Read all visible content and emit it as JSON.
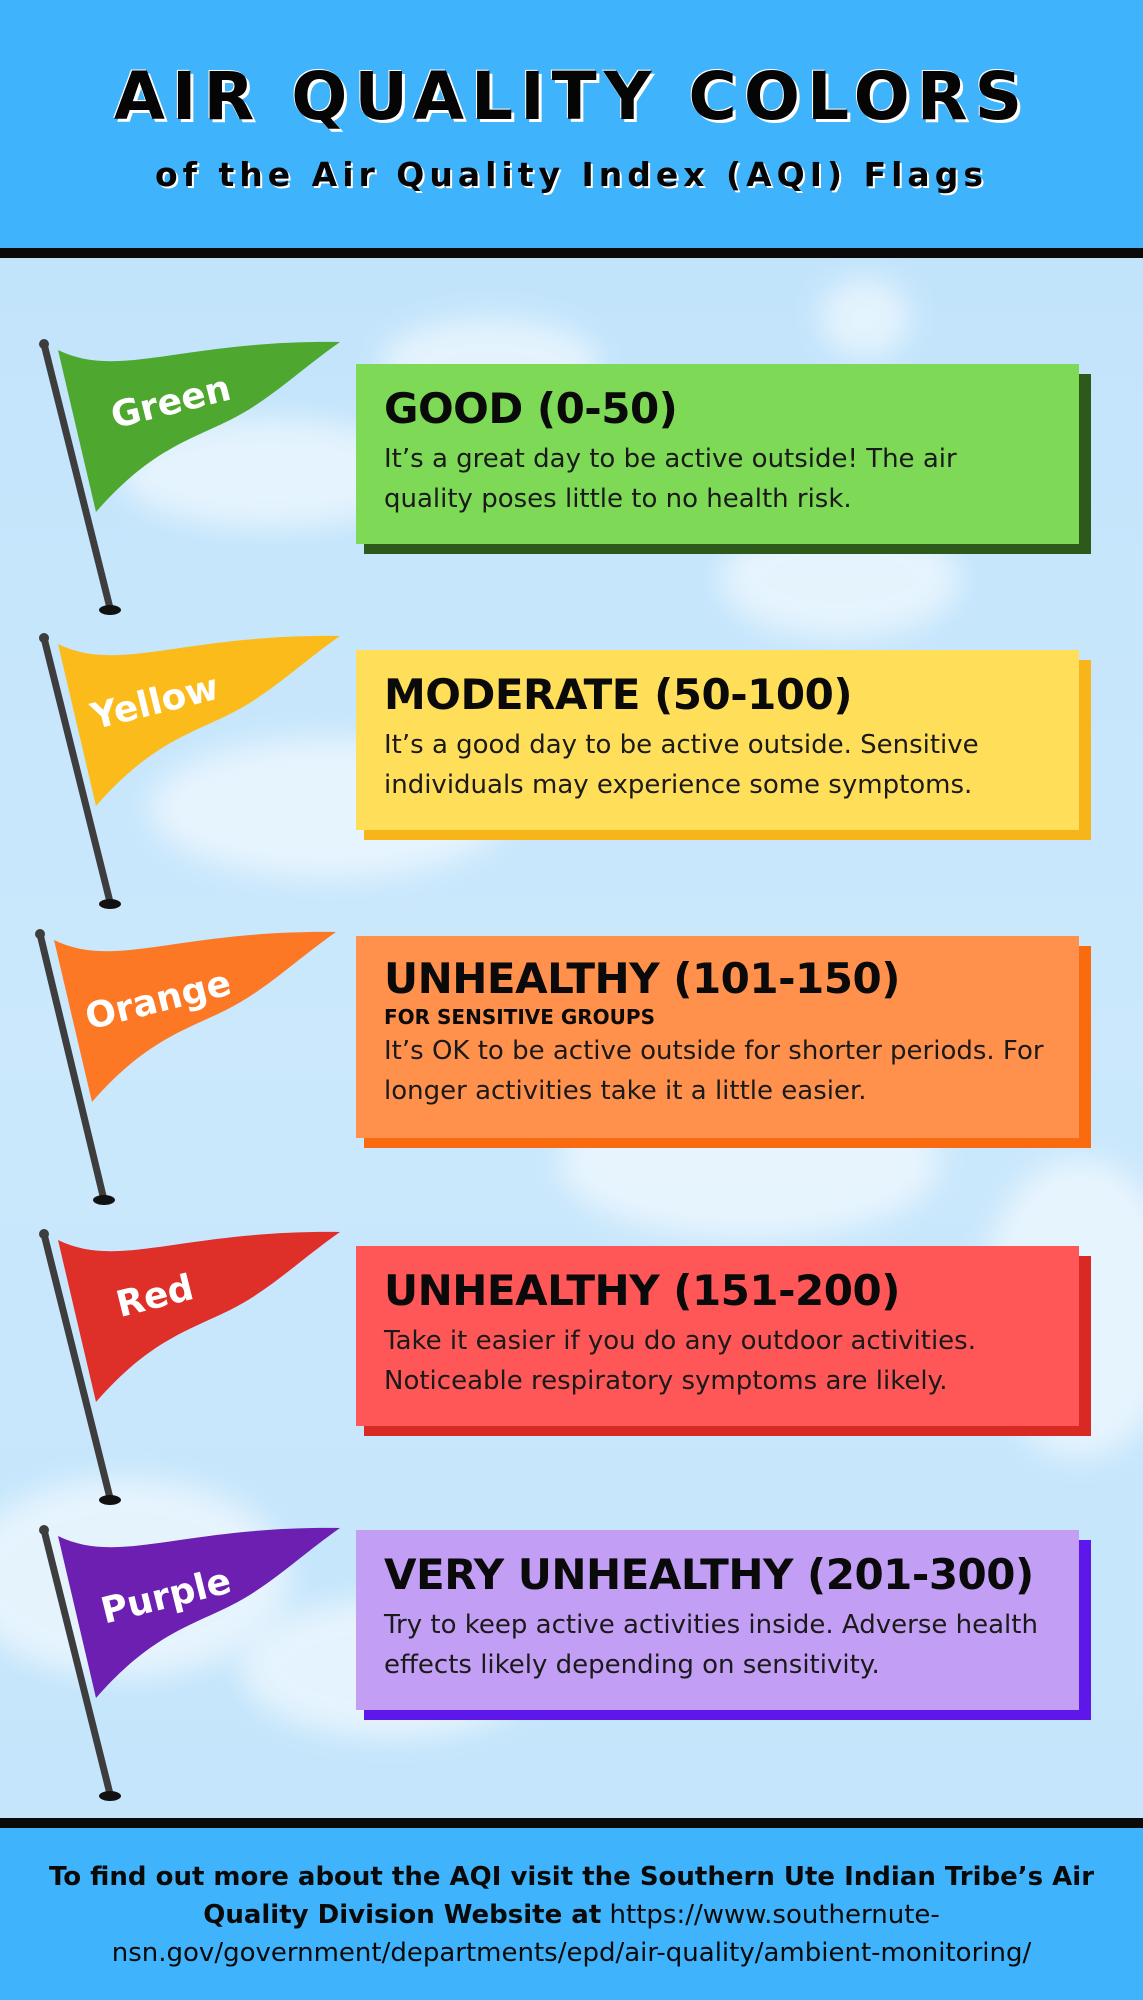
{
  "header": {
    "title": "AIR QUALITY COLORS",
    "subtitle": "of the Air Quality Index (AQI) Flags"
  },
  "levels": [
    {
      "flag": "Green",
      "title": "GOOD (0-50)",
      "subtitle": "",
      "description": "It’s a great day to be active outside! The air quality poses little to no health risk.",
      "flag_color": "#4ea72e",
      "card_color": "#7ed957",
      "shadow_color": "#2d5a1b"
    },
    {
      "flag": "Yellow",
      "title": "MODERATE (50-100)",
      "subtitle": "",
      "description": "It’s a good day to be active outside. Sensitive individuals may experience some symptoms.",
      "flag_color": "#fbbc1b",
      "card_color": "#ffde59",
      "shadow_color": "#f7b51a"
    },
    {
      "flag": "Orange",
      "title": "UNHEALTHY (101-150)",
      "subtitle": "FOR SENSITIVE GROUPS",
      "description": "It’s OK to be active outside for shorter periods. For longer activities take it a little easier.",
      "flag_color": "#fd7824",
      "card_color": "#ff914d",
      "shadow_color": "#fa6a0f"
    },
    {
      "flag": "Red",
      "title": "UNHEALTHY (151-200)",
      "subtitle": "",
      "description": "Take it easier if you do any outdoor activities. Noticeable respiratory symptoms are likely.",
      "flag_color": "#de2f28",
      "card_color": "#ff5757",
      "shadow_color": "#d82a22"
    },
    {
      "flag": "Purple",
      "title": "VERY UNHEALTHY (201-300)",
      "subtitle": "",
      "description": "Try to keep active activities inside. Adverse health effects likely depending on sensitivity.",
      "flag_color": "#6c1fb0",
      "card_color": "#c29ef5",
      "shadow_color": "#5e17eb"
    }
  ],
  "footer": {
    "bold_text": "To find out more about the AQI visit the Southern Ute Indian Tribe’s Air Quality Division Website at",
    "url": "https://www.southernute-nsn.gov/government/departments/epd/air-quality/ambient-monitoring/"
  },
  "icons": {
    "flag": "flag-icon",
    "flagpole": "flagpole-icon"
  }
}
